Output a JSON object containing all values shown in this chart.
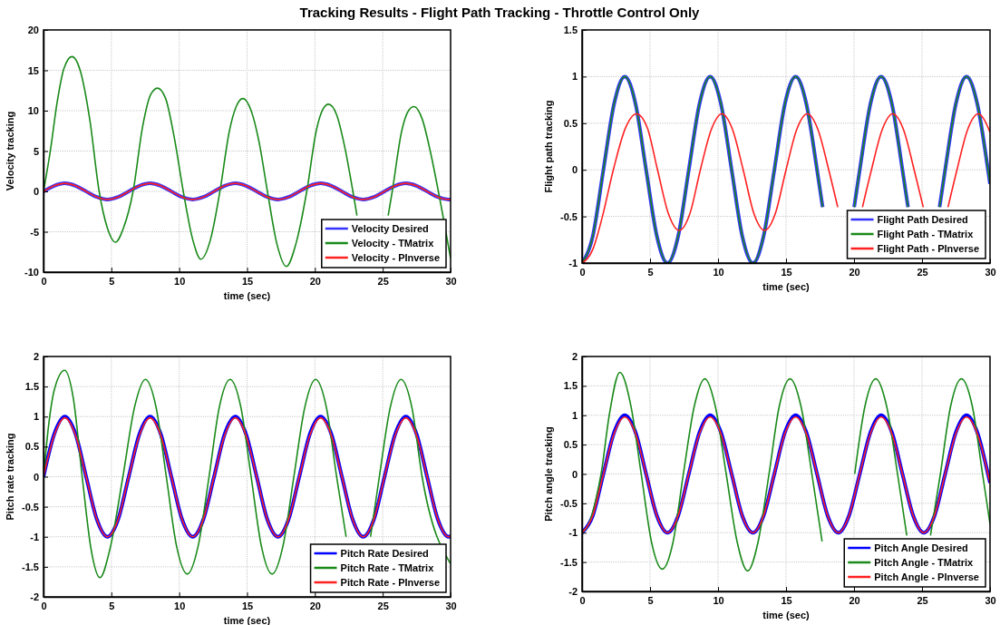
{
  "chart_data": [
    {
      "type": "line",
      "title": "Tracking Results - Flight Path Tracking - Throttle Control Only",
      "xlabel": "time (sec)",
      "ylabel": "Velocity tracking",
      "xlim": [
        0,
        30
      ],
      "xticks": [
        0,
        5,
        10,
        15,
        20,
        25,
        30
      ],
      "ylim": [
        -10,
        20
      ],
      "yticks": [
        -10,
        -5,
        0,
        5,
        10,
        15,
        20
      ],
      "grid": true,
      "legend": "bottom right",
      "line_style": "solid",
      "x": [
        0,
        0.79,
        1.57,
        2.36,
        3.14,
        3.93,
        4.71,
        5.5,
        6.28,
        7.07,
        7.85,
        8.64,
        9.42,
        10.21,
        11,
        11.78,
        12.57,
        13.35,
        14.14,
        14.92,
        15.71,
        16.49,
        17.28,
        18.06,
        18.85,
        19.63,
        20.42,
        21.21,
        21.99,
        22.78,
        23.56,
        24.35,
        25.13,
        25.92,
        26.7,
        27.49,
        28.27,
        29.06,
        29.85,
        30
      ],
      "series": [
        {
          "name": "Velocity Desired",
          "color": "#3333ff",
          "values": [
            0,
            0.7,
            1,
            0.7,
            0,
            -0.7,
            -1,
            -0.7,
            0,
            0.7,
            1,
            0.7,
            0,
            -0.7,
            -1,
            -0.7,
            0,
            0.7,
            1,
            0.7,
            0,
            -0.7,
            -1,
            -0.7,
            0,
            0.7,
            1,
            0.7,
            0,
            -0.7,
            -1,
            -0.7,
            0,
            0.7,
            1,
            0.7,
            0,
            -0.7,
            -1,
            -1
          ]
        },
        {
          "name": "Velocity - TMatrix",
          "color": "#1a8a1a",
          "x": [
            0,
            0.5,
            1,
            1.5,
            2.1,
            2.7,
            3.4,
            4.1,
            4.7,
            5.3,
            5.9,
            6.6,
            7.3,
            7.9,
            8.4,
            9,
            9.6,
            10.3,
            11,
            11.6,
            12.3,
            13,
            13.7,
            14.2,
            14.7,
            15.3,
            15.9,
            16.5,
            17.2,
            17.9,
            18.6,
            19.4,
            20.1,
            20.6,
            21,
            21.6,
            22.2,
            22.8,
            23.1,
            24.2,
            25.4,
            25.7,
            26.4,
            26.9,
            27.3,
            27.9,
            28.5,
            29.1,
            30
          ],
          "values": [
            0,
            5,
            11,
            15.2,
            16.7,
            15,
            9,
            0,
            -4.5,
            -6.3,
            -4.5,
            0,
            8,
            12,
            12.8,
            11.5,
            7,
            0,
            -6,
            -8.4,
            -6,
            0,
            7.5,
            10.5,
            11.5,
            10,
            6,
            0,
            -6.5,
            -9.3,
            -6.5,
            0,
            7.5,
            10.2,
            10.8,
            9.5,
            5.5,
            0,
            -3,
            null,
            -3,
            0,
            7.5,
            10,
            10.5,
            9,
            5,
            0,
            -8.3
          ]
        },
        {
          "name": "Velocity - PInverse",
          "color": "#ff2020",
          "values": [
            0,
            0.7,
            1,
            0.7,
            0,
            -0.7,
            -1,
            -0.7,
            0,
            0.7,
            1,
            0.7,
            0,
            -0.7,
            -1,
            -0.7,
            0,
            0.7,
            1,
            0.7,
            0,
            -0.7,
            -1,
            -0.7,
            0,
            0.7,
            1,
            0.7,
            0,
            -0.7,
            -1,
            -0.7,
            0,
            0.7,
            1,
            0.7,
            0,
            -0.7,
            -1,
            -1
          ]
        }
      ]
    },
    {
      "type": "line",
      "xlabel": "time (sec)",
      "ylabel": "Flight path tracking",
      "xlim": [
        0,
        30
      ],
      "xticks": [
        0,
        5,
        10,
        15,
        20,
        25,
        30
      ],
      "ylim": [
        -1,
        1.5
      ],
      "yticks": [
        -1,
        -0.5,
        0,
        0.5,
        1,
        1.5
      ],
      "grid": true,
      "legend": "bottom right",
      "line_style": "solid",
      "x": [
        0,
        0.79,
        1.57,
        2.36,
        3.14,
        3.93,
        4.71,
        5.5,
        6.28,
        7.07,
        7.85,
        8.64,
        9.42,
        10.21,
        11,
        11.78,
        12.57,
        13.35,
        14.14,
        14.92,
        15.71,
        16.49,
        17.28,
        17.69,
        18.85,
        20.01,
        20.42,
        21.21,
        21.99,
        22.78,
        23.56,
        23.97,
        25.13,
        26.29,
        26.7,
        27.49,
        28.27,
        29.06,
        29.85,
        30
      ],
      "series": [
        {
          "name": "Flight Path Desired",
          "color": "#3333ff",
          "values": [
            -1,
            -0.71,
            0,
            0.71,
            1,
            0.71,
            0,
            -0.71,
            -1,
            -0.71,
            0,
            0.71,
            1,
            0.71,
            0,
            -0.71,
            -1,
            -0.71,
            0,
            0.71,
            1,
            0.71,
            0,
            -0.4,
            null,
            -0.4,
            0,
            0.71,
            1,
            0.71,
            0,
            -0.4,
            null,
            -0.4,
            0,
            0.71,
            1,
            0.71,
            0,
            -0.15
          ]
        },
        {
          "name": "Flight Path - TMatrix",
          "color": "#1a8a1a",
          "values": [
            -1,
            -0.71,
            0,
            0.71,
            1,
            0.71,
            0,
            -0.71,
            -1,
            -0.71,
            0,
            0.71,
            1,
            0.71,
            0,
            -0.71,
            -1,
            -0.71,
            0,
            0.71,
            1,
            0.71,
            0,
            -0.4,
            null,
            -0.4,
            0,
            0.71,
            1,
            0.71,
            0,
            -0.4,
            null,
            -0.4,
            0,
            0.71,
            1,
            0.71,
            0,
            -0.15
          ]
        },
        {
          "name": "Flight Path - PInverse",
          "color": "#ff2020",
          "x": [
            0,
            0.8,
            1.5,
            2.3,
            3.2,
            4,
            4.8,
            5.55,
            6.35,
            7.14,
            7.93,
            8.7,
            9.5,
            10.28,
            11.07,
            11.85,
            12.64,
            13.42,
            14.21,
            15,
            15.78,
            16.57,
            17.35,
            18.14,
            18.8,
            19.71,
            20.62,
            21.28,
            22.07,
            22.85,
            23.64,
            24.42,
            25.09,
            26,
            26.91,
            27.57,
            28.35,
            29.14,
            29.92,
            30
          ],
          "values": [
            -1,
            -0.85,
            -0.5,
            0,
            0.45,
            0.6,
            0.45,
            0,
            -0.47,
            -0.65,
            -0.47,
            0,
            0.43,
            0.6,
            0.43,
            0,
            -0.47,
            -0.65,
            -0.47,
            0,
            0.43,
            0.6,
            0.43,
            0,
            -0.4,
            null,
            -0.4,
            0,
            0.43,
            0.6,
            0.43,
            0,
            -0.4,
            null,
            -0.4,
            0,
            0.43,
            0.6,
            0.43,
            0.4
          ]
        }
      ]
    },
    {
      "type": "line",
      "xlabel": "time (sec)",
      "ylabel": "Pitch rate tracking",
      "xlim": [
        0,
        30
      ],
      "xticks": [
        0,
        5,
        10,
        15,
        20,
        25,
        30
      ],
      "ylim": [
        -2,
        2
      ],
      "yticks": [
        -2,
        -1.5,
        -1,
        -0.5,
        0,
        0.5,
        1,
        1.5,
        2
      ],
      "grid": true,
      "legend": "bottom right",
      "line_style": "solid",
      "x": [
        0,
        0.79,
        1.57,
        2.36,
        3.14,
        3.93,
        4.71,
        5.5,
        6.28,
        7.07,
        7.85,
        8.64,
        9.42,
        10.21,
        11,
        11.78,
        12.57,
        13.35,
        14.14,
        14.92,
        15.71,
        16.49,
        17.28,
        18.06,
        18.85,
        19.63,
        20.42,
        21.21,
        21.99,
        22.78,
        23.56,
        24.35,
        25.13,
        25.92,
        26.7,
        27.49,
        28.27,
        29.06,
        29.85,
        30
      ],
      "series": [
        {
          "name": "Pitch Rate Desired",
          "color": "#0000ff",
          "values": [
            0,
            0.71,
            1,
            0.71,
            0,
            -0.71,
            -1,
            -0.71,
            0,
            0.71,
            1,
            0.71,
            0,
            -0.71,
            -1,
            -0.71,
            0,
            0.71,
            1,
            0.71,
            0,
            -0.71,
            -1,
            -0.71,
            0,
            0.71,
            1,
            0.71,
            0,
            -0.71,
            -1,
            -0.71,
            0,
            0.71,
            1,
            0.71,
            0,
            -0.71,
            -1,
            -0.99
          ]
        },
        {
          "name": "Pitch Rate - TMatrix",
          "color": "#1a8a1a",
          "x": [
            0,
            0.4,
            0.8,
            1.56,
            2.2,
            2.85,
            3.5,
            4.16,
            4.9,
            5.85,
            6.7,
            7.51,
            8.3,
            9.05,
            9.8,
            10.6,
            11.4,
            12.2,
            12.95,
            13.75,
            14.55,
            15.3,
            16.05,
            16.85,
            17.65,
            18.45,
            19.25,
            20.05,
            20.85,
            21.6,
            22.3,
            23.2,
            24.1,
            24.75,
            25.55,
            26.35,
            27.15,
            27.9,
            30
          ],
          "values": [
            0,
            0.9,
            1.45,
            1.77,
            1.3,
            0,
            -1.2,
            -1.68,
            -1.2,
            0,
            1.15,
            1.62,
            1.15,
            0,
            -1.15,
            -1.62,
            -1.15,
            0,
            1.15,
            1.62,
            1.15,
            0,
            -1.15,
            -1.62,
            -1.15,
            0,
            1.15,
            1.62,
            1.15,
            0,
            -1,
            null,
            -1,
            0,
            1.15,
            1.62,
            1.15,
            0,
            -1.45
          ]
        },
        {
          "name": "Pitch Rate - PInverse",
          "color": "#ff2020",
          "values": [
            0,
            0.69,
            0.98,
            0.69,
            0,
            -0.71,
            -1,
            -0.71,
            0,
            0.69,
            0.98,
            0.69,
            0,
            -0.71,
            -1,
            -0.71,
            0,
            0.69,
            0.98,
            0.69,
            0,
            -0.71,
            -1,
            -0.71,
            0,
            0.69,
            0.98,
            0.69,
            0,
            -0.71,
            -1,
            -0.71,
            0,
            0.69,
            0.98,
            0.69,
            0,
            -0.71,
            -1,
            -0.99
          ]
        }
      ]
    },
    {
      "type": "line",
      "xlabel": "time (sec)",
      "ylabel": "Pitch angle tracking",
      "xlim": [
        0,
        30
      ],
      "xticks": [
        0,
        5,
        10,
        15,
        20,
        25,
        30
      ],
      "ylim": [
        -2,
        2
      ],
      "yticks": [
        -2,
        -1.5,
        -1,
        -0.5,
        0,
        0.5,
        1,
        1.5,
        2
      ],
      "grid": true,
      "legend": "bottom right",
      "line_style": "solid",
      "x": [
        0,
        0.79,
        1.57,
        2.36,
        3.14,
        3.93,
        4.71,
        5.5,
        6.28,
        7.07,
        7.85,
        8.64,
        9.42,
        10.21,
        11,
        11.78,
        12.57,
        13.35,
        14.14,
        14.92,
        15.71,
        16.49,
        17.28,
        18.06,
        18.85,
        19.63,
        20.42,
        21.21,
        21.99,
        22.78,
        23.56,
        24.35,
        25.13,
        25.92,
        26.7,
        27.49,
        28.27,
        29.06,
        29.85,
        30
      ],
      "series": [
        {
          "name": "Pitch Angle Desired",
          "color": "#0000ff",
          "values": [
            -1,
            -0.71,
            0,
            0.71,
            1,
            0.71,
            0,
            -0.71,
            -1,
            -0.71,
            0,
            0.71,
            1,
            0.71,
            0,
            -0.71,
            -1,
            -0.71,
            0,
            0.71,
            1,
            0.71,
            0,
            -0.71,
            -1,
            -0.71,
            0,
            0.71,
            1,
            0.71,
            0,
            -0.71,
            -1,
            -0.71,
            0,
            0.71,
            1,
            0.71,
            0,
            -0.15
          ]
        },
        {
          "name": "Pitch Angle - TMatrix",
          "color": "#1a8a1a",
          "x": [
            0,
            0.5,
            1,
            1.4,
            2,
            2.78,
            3.6,
            4.35,
            5.1,
            5.9,
            6.7,
            7.45,
            8.25,
            9.03,
            9.8,
            10.6,
            11.4,
            12.18,
            12.95,
            13.75,
            14.5,
            15.3,
            16.1,
            16.9,
            17.65,
            18.45,
            19.25,
            20.05,
            20.8,
            21.6,
            22.4,
            23.2,
            23.88,
            24.75,
            25.62,
            26.35,
            27.1,
            27.9,
            28.7,
            29.45,
            30
          ],
          "values": [
            -1,
            -0.85,
            -0.45,
            0,
            1,
            1.73,
            1.15,
            0,
            -1.15,
            -1.62,
            -1.15,
            0,
            1.15,
            1.62,
            1.15,
            0,
            -1.15,
            -1.65,
            -1.15,
            0,
            1.15,
            1.62,
            1.15,
            0,
            -1.15,
            null,
            null,
            0,
            1.15,
            1.62,
            1.15,
            0,
            -1.05,
            null,
            -1.05,
            0,
            1.15,
            1.62,
            1.15,
            0,
            -0.85
          ]
        },
        {
          "name": "Pitch Angle - PInverse",
          "color": "#ff2020",
          "values": [
            -1,
            -0.71,
            0,
            0.69,
            0.97,
            0.69,
            0,
            -0.71,
            -1,
            -0.71,
            0,
            0.69,
            0.97,
            0.69,
            0,
            -0.71,
            -1,
            -0.71,
            0,
            0.69,
            0.97,
            0.69,
            0,
            -0.71,
            -1,
            -0.71,
            0,
            0.69,
            0.97,
            0.69,
            0,
            -0.71,
            -1,
            -0.71,
            0,
            0.69,
            0.97,
            0.69,
            0,
            -0.15
          ]
        }
      ]
    }
  ]
}
